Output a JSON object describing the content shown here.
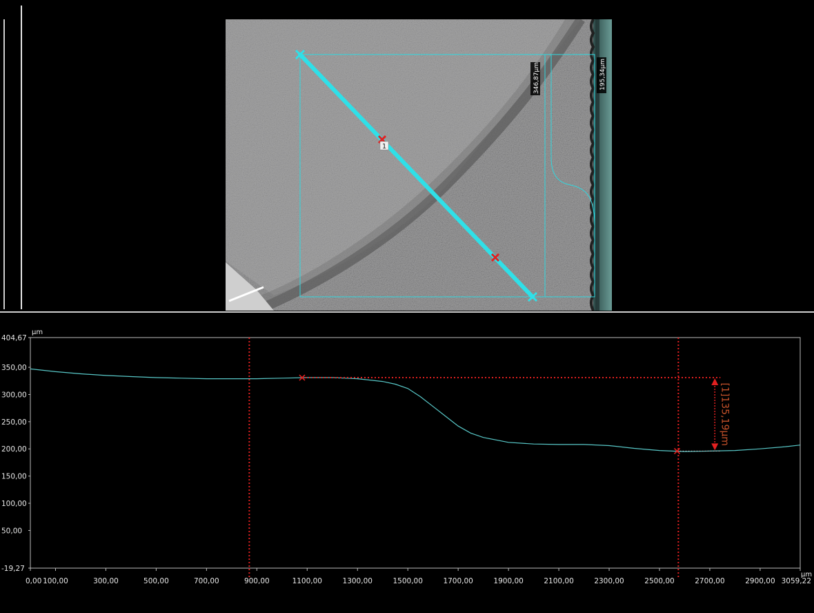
{
  "measure_labels": {
    "label_a": "346,87µm",
    "label_b": "195,34µm",
    "marker_number": "1"
  },
  "colors": {
    "profile_line": "#58c8c8",
    "marker": "#e22020",
    "measure_text": "#c7522a",
    "overlay": "#2fd8e0",
    "frame": "#bdbdbd"
  },
  "chart_data": {
    "type": "line",
    "xlabel": "µm",
    "ylabel": "µm",
    "xlim": [
      0,
      3059.22
    ],
    "ylim": [
      -19.27,
      404.67
    ],
    "x_ticks": [
      "0,00",
      "100,00",
      "300,00",
      "500,00",
      "700,00",
      "900,00",
      "1100,00",
      "1300,00",
      "1500,00",
      "1700,00",
      "1900,00",
      "2100,00",
      "2300,00",
      "2500,00",
      "2700,00",
      "2900,00",
      "3059,22"
    ],
    "x_tick_values": [
      0,
      100,
      300,
      500,
      700,
      900,
      1100,
      1300,
      1500,
      1700,
      1900,
      2100,
      2300,
      2500,
      2700,
      2900,
      3059.22
    ],
    "y_ticks": [
      "404,67",
      "350,00",
      "300,00",
      "250,00",
      "200,00",
      "150,00",
      "100,00",
      "50,00",
      "-19,27"
    ],
    "y_tick_values": [
      404.67,
      350,
      300,
      250,
      200,
      150,
      100,
      50,
      -19.27
    ],
    "grid": false,
    "series": [
      {
        "x": [
          0,
          100,
          200,
          300,
          400,
          500,
          600,
          700,
          800,
          900,
          1000,
          1100,
          1200,
          1300,
          1400,
          1450,
          1500,
          1550,
          1600,
          1650,
          1700,
          1750,
          1800,
          1900,
          2000,
          2100,
          2200,
          2300,
          2400,
          2500,
          2550,
          2600,
          2700,
          2800,
          2900,
          3000,
          3059.22
        ],
        "y": [
          347,
          342,
          338,
          335,
          333,
          331,
          330,
          329,
          329,
          329,
          330,
          331,
          331,
          329,
          324,
          319,
          311,
          296,
          278,
          260,
          242,
          229,
          221,
          212,
          209,
          208,
          208,
          206,
          201,
          197,
          196,
          195,
          196,
          197,
          200,
          204,
          207
        ]
      }
    ],
    "cursor_lines_x": [
      870,
      2575
    ],
    "measurement": {
      "label": "[1]135,19µm",
      "point1": {
        "x": 1080,
        "y": 331
      },
      "point2": {
        "x": 2570,
        "y": 196
      },
      "arrow_x": 2720
    }
  }
}
